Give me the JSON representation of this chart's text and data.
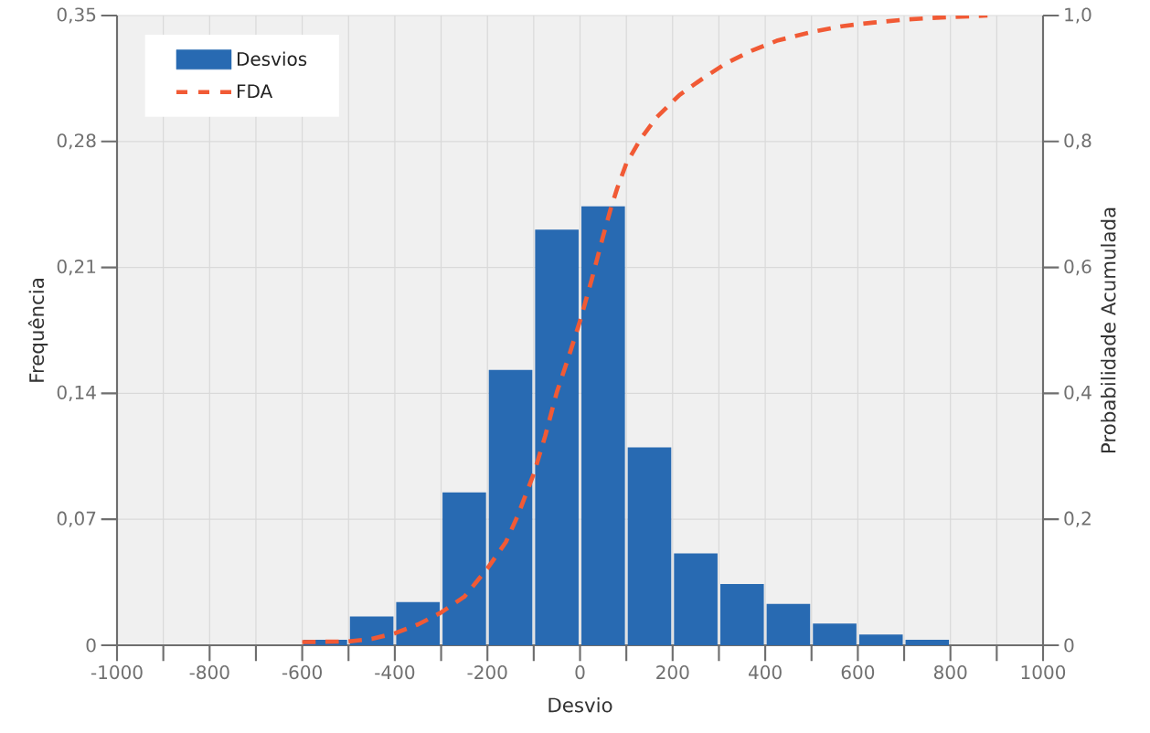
{
  "chart_data": {
    "type": "histogram",
    "xlabel": "Desvio",
    "ylabel": "Frequência",
    "y2label": "Probabilidade Acumulada",
    "bins": [
      -600,
      -500,
      -400,
      -300,
      -200,
      -100,
      0,
      100,
      200,
      300,
      400,
      500,
      600,
      700,
      800
    ],
    "series": [
      {
        "name": "Desvios",
        "color": "#286ab2",
        "values": [
          0.003,
          0.016,
          0.024,
          0.085,
          0.153,
          0.231,
          0.244,
          0.11,
          0.051,
          0.034,
          0.023,
          0.012,
          0.006,
          0.003
        ]
      },
      {
        "name": "FDA",
        "type": "line",
        "axis": "y2",
        "color": "#f15a35",
        "line_style": "dashed",
        "x": [
          -600,
          -500,
          -450,
          -400,
          -350,
          -300,
          -250,
          -200,
          -160,
          -135,
          -100,
          -75,
          -50,
          -25,
          0,
          25,
          50,
          65,
          80,
          100,
          130,
          165,
          215,
          265,
          315,
          370,
          425,
          495,
          565,
          635,
          710,
          780,
          880
        ],
        "values": [
          0.005,
          0.006,
          0.01,
          0.019,
          0.033,
          0.052,
          0.077,
          0.122,
          0.164,
          0.205,
          0.272,
          0.333,
          0.402,
          0.457,
          0.515,
          0.58,
          0.65,
          0.69,
          0.725,
          0.765,
          0.803,
          0.838,
          0.874,
          0.9,
          0.924,
          0.944,
          0.96,
          0.973,
          0.983,
          0.989,
          0.994,
          0.997,
          1.0
        ]
      }
    ],
    "xlim": [
      -1000,
      1000
    ],
    "xticks": [
      -1000,
      {
        "value": -900,
        "label": null
      },
      -800,
      {
        "value": -700,
        "label": null
      },
      -600,
      {
        "value": -500,
        "label": null
      },
      -400,
      {
        "value": -300,
        "label": null
      },
      -200,
      {
        "value": -100,
        "label": null
      },
      0,
      {
        "value": 100,
        "label": null
      },
      200,
      {
        "value": 300,
        "label": null
      },
      400,
      {
        "value": 500,
        "label": null
      },
      600,
      {
        "value": 700,
        "label": null
      },
      800,
      {
        "value": 900,
        "label": null
      },
      1000
    ],
    "ylim": [
      0,
      0.35
    ],
    "yticks": [
      0,
      {
        "value": 0.07,
        "label": "0,07"
      },
      {
        "value": 0.14,
        "label": "0,14"
      },
      {
        "value": 0.21,
        "label": "0,21"
      },
      {
        "value": 0.28,
        "label": "0,28"
      },
      {
        "value": 0.35,
        "label": "0,35"
      }
    ],
    "y2lim": [
      0,
      1
    ],
    "y2ticks": [
      0,
      {
        "value": 0.2,
        "label": "0,2"
      },
      {
        "value": 0.4,
        "label": "0,4"
      },
      {
        "value": 0.6,
        "label": "0,6"
      },
      {
        "value": 0.8,
        "label": "0,8"
      },
      {
        "value": 1,
        "label": "1,0"
      }
    ],
    "grid": true,
    "legend": "top left"
  }
}
